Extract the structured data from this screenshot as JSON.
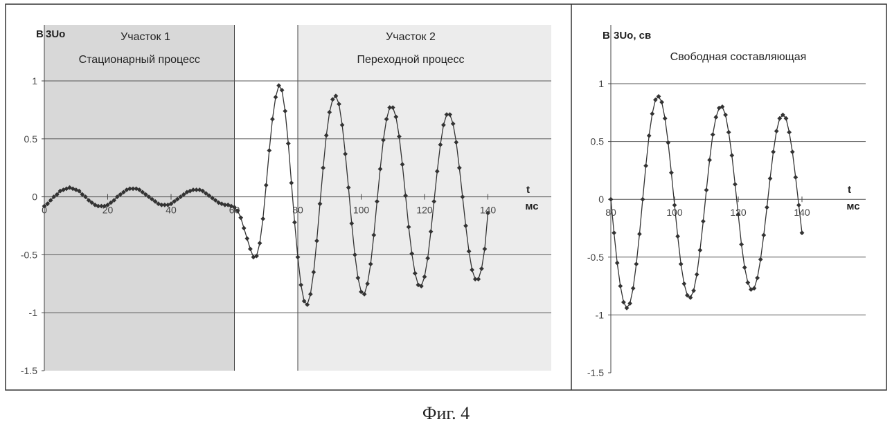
{
  "caption": "Фиг. 4",
  "chart_data": [
    {
      "type": "line",
      "y_unit": "В",
      "series_label": "3Uo",
      "regions": [
        {
          "title": "Участок 1",
          "subtitle": "Стационарный процесс",
          "x_range": [
            0,
            60
          ],
          "fill": "#d8d8d8"
        },
        {
          "title": "Участок 2",
          "subtitle": "Переходной процесс",
          "x_range": [
            80,
            160
          ],
          "fill": "#ececec"
        }
      ],
      "xlabel": "t",
      "x_unit": "мс",
      "xlim": [
        0,
        160
      ],
      "ylim": [
        -1.5,
        1.0
      ],
      "x_ticks": [
        0,
        20,
        40,
        60,
        80,
        100,
        120,
        140
      ],
      "y_ticks": [
        1,
        0.5,
        0,
        -0.5,
        -1,
        -1.5
      ],
      "y_tick_labels": [
        "1",
        "0.5",
        "0",
        "-0.5",
        "-1",
        "-1.5"
      ],
      "grid": true,
      "series": [
        {
          "x": [
            0,
            1,
            2,
            3,
            4,
            5,
            6,
            7,
            8,
            9,
            10,
            11,
            12,
            13,
            14,
            15,
            16,
            17,
            18,
            19,
            20,
            21,
            22,
            23,
            24,
            25,
            26,
            27,
            28,
            29,
            30,
            31,
            32,
            33,
            34,
            35,
            36,
            37,
            38,
            39,
            40,
            41,
            42,
            43,
            44,
            45,
            46,
            47,
            48,
            49,
            50,
            51,
            52,
            53,
            54,
            55,
            56,
            57,
            58,
            59,
            60,
            61,
            62,
            63,
            64,
            65,
            66,
            67,
            68,
            69,
            70,
            71,
            72,
            73,
            74,
            75,
            76,
            77,
            78,
            79,
            80,
            81,
            82,
            83,
            84,
            85,
            86,
            87,
            88,
            89,
            90,
            91,
            92,
            93,
            94,
            95,
            96,
            97,
            98,
            99,
            100,
            101,
            102,
            103,
            104,
            105,
            106,
            107,
            108,
            109,
            110,
            111,
            112,
            113,
            114,
            115,
            116,
            117,
            118,
            119,
            120,
            121,
            122,
            123,
            124,
            125,
            126,
            127,
            128,
            129,
            130,
            131,
            132,
            133,
            134,
            135,
            136,
            137,
            138,
            139,
            140
          ],
          "y": [
            -0.08,
            -0.06,
            -0.03,
            0.0,
            0.02,
            0.05,
            0.06,
            0.07,
            0.08,
            0.07,
            0.06,
            0.05,
            0.02,
            0.0,
            -0.03,
            -0.05,
            -0.07,
            -0.08,
            -0.08,
            -0.08,
            -0.07,
            -0.05,
            -0.03,
            0.0,
            0.02,
            0.04,
            0.06,
            0.07,
            0.07,
            0.07,
            0.06,
            0.04,
            0.02,
            0.0,
            -0.02,
            -0.04,
            -0.06,
            -0.07,
            -0.07,
            -0.07,
            -0.06,
            -0.04,
            -0.02,
            0.0,
            0.02,
            0.04,
            0.05,
            0.06,
            0.06,
            0.06,
            0.05,
            0.03,
            0.01,
            -0.01,
            -0.03,
            -0.05,
            -0.06,
            -0.07,
            -0.07,
            -0.08,
            -0.09,
            -0.12,
            -0.18,
            -0.27,
            -0.36,
            -0.45,
            -0.52,
            -0.51,
            -0.4,
            -0.19,
            0.1,
            0.4,
            0.67,
            0.86,
            0.96,
            0.92,
            0.74,
            0.46,
            0.12,
            -0.22,
            -0.52,
            -0.76,
            -0.9,
            -0.93,
            -0.84,
            -0.65,
            -0.38,
            -0.06,
            0.25,
            0.53,
            0.73,
            0.84,
            0.87,
            0.8,
            0.62,
            0.37,
            0.08,
            -0.23,
            -0.5,
            -0.7,
            -0.82,
            -0.84,
            -0.75,
            -0.58,
            -0.33,
            -0.04,
            0.24,
            0.49,
            0.67,
            0.77,
            0.77,
            0.69,
            0.52,
            0.28,
            0.01,
            -0.26,
            -0.49,
            -0.66,
            -0.76,
            -0.77,
            -0.69,
            -0.53,
            -0.3,
            -0.04,
            0.22,
            0.45,
            0.62,
            0.71,
            0.71,
            0.63,
            0.47,
            0.25,
            0.0,
            -0.25,
            -0.47,
            -0.63,
            -0.71,
            -0.71,
            -0.62,
            -0.45,
            -0.14
          ]
        }
      ]
    },
    {
      "type": "line",
      "y_unit": "В",
      "series_label": "3Uo, св",
      "title": "Свободная составляющая",
      "xlabel": "t",
      "x_unit": "мс",
      "xlim": [
        80,
        160
      ],
      "ylim": [
        -1.5,
        1.0
      ],
      "x_ticks": [
        80,
        100,
        120,
        140
      ],
      "y_ticks": [
        1,
        0.5,
        0,
        -0.5,
        -1,
        -1.5
      ],
      "y_tick_labels": [
        "1",
        "0.5",
        "0",
        "-0.5",
        "-1",
        "-1.5"
      ],
      "grid": true,
      "series": [
        {
          "x": [
            80,
            81,
            82,
            83,
            84,
            85,
            86,
            87,
            88,
            89,
            90,
            91,
            92,
            93,
            94,
            95,
            96,
            97,
            98,
            99,
            100,
            101,
            102,
            103,
            104,
            105,
            106,
            107,
            108,
            109,
            110,
            111,
            112,
            113,
            114,
            115,
            116,
            117,
            118,
            119,
            120,
            121,
            122,
            123,
            124,
            125,
            126,
            127,
            128,
            129,
            130,
            131,
            132,
            133,
            134,
            135,
            136,
            137,
            138,
            139,
            140
          ],
          "y": [
            0.0,
            -0.29,
            -0.55,
            -0.75,
            -0.89,
            -0.94,
            -0.9,
            -0.77,
            -0.56,
            -0.3,
            0.0,
            0.29,
            0.55,
            0.74,
            0.86,
            0.89,
            0.84,
            0.7,
            0.49,
            0.23,
            -0.05,
            -0.32,
            -0.56,
            -0.73,
            -0.83,
            -0.85,
            -0.79,
            -0.65,
            -0.44,
            -0.19,
            0.08,
            0.34,
            0.56,
            0.71,
            0.79,
            0.8,
            0.73,
            0.58,
            0.38,
            0.13,
            -0.13,
            -0.39,
            -0.59,
            -0.72,
            -0.78,
            -0.77,
            -0.68,
            -0.52,
            -0.31,
            -0.07,
            0.18,
            0.41,
            0.59,
            0.7,
            0.73,
            0.7,
            0.58,
            0.41,
            0.19,
            -0.05,
            -0.29
          ]
        }
      ]
    }
  ]
}
